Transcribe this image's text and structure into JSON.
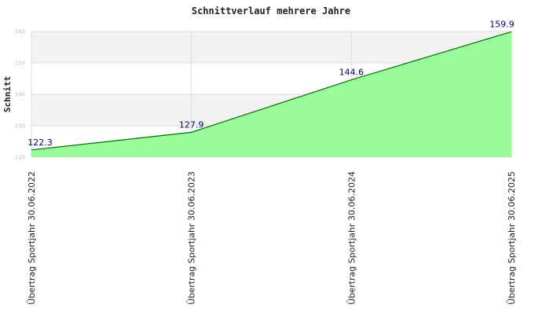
{
  "chart_data": {
    "type": "area",
    "title": "Schnittverlauf mehrere Jahre",
    "xlabel": "",
    "ylabel": "Schnitt",
    "categories": [
      "Übertrag Sportjahr 30.06.2022",
      "Übertrag Sportjahr 30.06.2023",
      "Übertrag Sportjahr 30.06.2024",
      "Übertrag Sportjahr 30.06.2025"
    ],
    "values": [
      122.3,
      127.9,
      144.6,
      159.9
    ],
    "data_labels": [
      "122.3",
      "127.9",
      "144.6",
      "159.9"
    ],
    "ylim": [
      120,
      160
    ],
    "yticks": [
      120,
      130,
      140,
      150,
      160
    ],
    "grid": true,
    "legend": "none",
    "colors": {
      "fill": "#98fb98",
      "line": "#007000",
      "band": "#f2f2f2",
      "grid": "#dddddd",
      "data_label": "#000080"
    }
  }
}
